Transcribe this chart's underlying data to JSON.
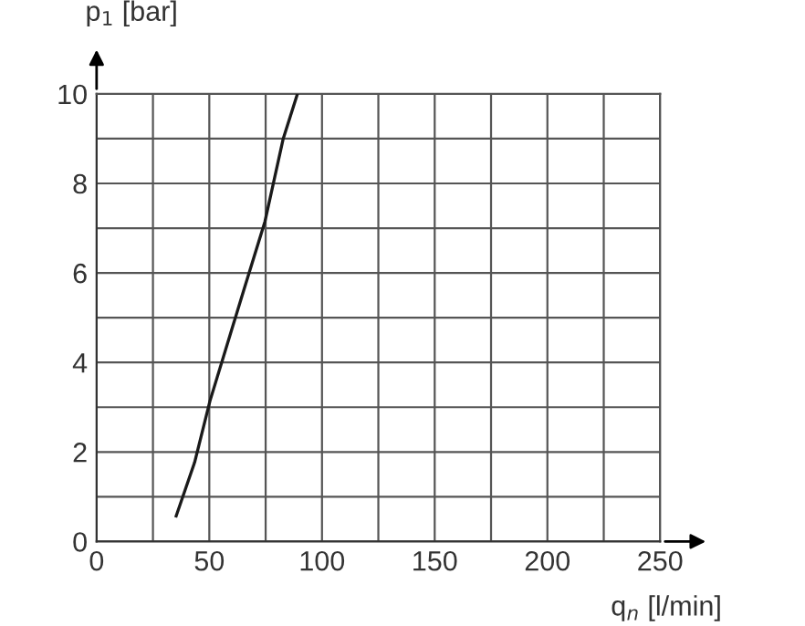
{
  "chart_data": {
    "type": "line",
    "xlabel": "q$_{n}$ [l/min]",
    "ylabel": "p$_{1}$ [bar]",
    "x": [
      35.3,
      43.5,
      50.3,
      65.2,
      74.7,
      82.8,
      89.1
    ],
    "series": [
      {
        "color": "#1a1a1a",
        "values": [
          0.57,
          1.77,
          3.14,
          5.6,
          7.15,
          9.0,
          10
        ]
      }
    ],
    "xlim": [
      0,
      250
    ],
    "ylim": [
      0,
      10
    ],
    "xticks": [
      0,
      {
        "value": 25,
        "label": null
      },
      50,
      {
        "value": 75,
        "label": null
      },
      100,
      {
        "value": 125,
        "label": null
      },
      150,
      {
        "value": 175,
        "label": null
      },
      200,
      {
        "value": 225,
        "label": null
      },
      250
    ],
    "yticks": [
      0,
      {
        "value": 1,
        "label": null
      },
      2,
      {
        "value": 3,
        "label": null
      },
      4,
      {
        "value": 5,
        "label": null
      },
      6,
      {
        "value": 7,
        "label": null
      },
      8,
      {
        "value": 9,
        "label": null
      },
      10
    ],
    "grid": true,
    "marker": "none",
    "line_style": "solid"
  }
}
